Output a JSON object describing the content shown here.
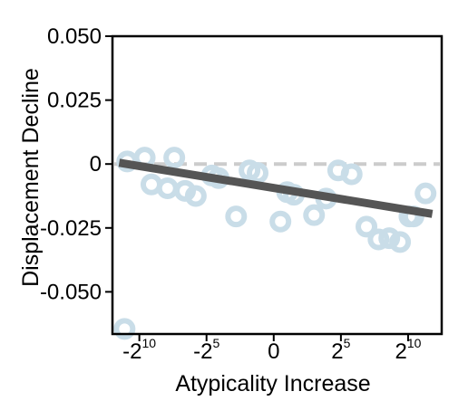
{
  "chart_data": {
    "type": "scatter",
    "xlabel": "Atypicality Increase",
    "ylabel": "Displacement Decline",
    "xlim": [
      -12,
      12.5
    ],
    "ylim": [
      -0.0665,
      0.05
    ],
    "yticks": [
      {
        "value": 0.05,
        "label": "0.050"
      },
      {
        "value": 0.025,
        "label": "0.025"
      },
      {
        "value": 0,
        "label": "0"
      },
      {
        "value": -0.025,
        "label": "-0.025"
      },
      {
        "value": -0.05,
        "label": "-0.050"
      }
    ],
    "xticks": [
      {
        "value": -10,
        "base": "-2",
        "exp": "10"
      },
      {
        "value": -5,
        "base": "-2",
        "exp": "5"
      },
      {
        "value": 0,
        "base": "0",
        "exp": ""
      },
      {
        "value": 5,
        "base": "2",
        "exp": "5"
      },
      {
        "value": 10,
        "base": "2",
        "exp": "10"
      }
    ],
    "reference_line": {
      "y": 0,
      "style": "dashed",
      "color": "#cccccc"
    },
    "points": [
      {
        "x": -10.9,
        "y": 0.001
      },
      {
        "x": -9.1,
        "y": -0.008
      },
      {
        "x": -7.9,
        "y": -0.0095
      },
      {
        "x": -9.6,
        "y": 0.0025
      },
      {
        "x": -7.4,
        "y": 0.0025
      },
      {
        "x": -6.6,
        "y": -0.0105
      },
      {
        "x": -5.8,
        "y": -0.0125
      },
      {
        "x": -4.6,
        "y": -0.0045
      },
      {
        "x": -4.1,
        "y": -0.0055
      },
      {
        "x": -2.8,
        "y": -0.0205
      },
      {
        "x": -1.8,
        "y": -0.0025
      },
      {
        "x": -1.2,
        "y": -0.0035
      },
      {
        "x": 0.5,
        "y": -0.0225
      },
      {
        "x": 1.0,
        "y": -0.011
      },
      {
        "x": 1.5,
        "y": -0.012
      },
      {
        "x": 3.0,
        "y": -0.02
      },
      {
        "x": 3.9,
        "y": -0.0135
      },
      {
        "x": 4.8,
        "y": -0.0025
      },
      {
        "x": 5.8,
        "y": -0.004
      },
      {
        "x": 6.9,
        "y": -0.0245
      },
      {
        "x": 7.8,
        "y": -0.0295
      },
      {
        "x": 8.6,
        "y": -0.029
      },
      {
        "x": 9.4,
        "y": -0.0305
      },
      {
        "x": 10.1,
        "y": -0.0205
      },
      {
        "x": 10.4,
        "y": -0.0205
      },
      {
        "x": 11.3,
        "y": -0.0115
      },
      {
        "x": -11.1,
        "y": -0.0645
      }
    ],
    "fit_line": {
      "x": [
        -11.5,
        11.8
      ],
      "y": [
        0.0005,
        -0.0195
      ]
    },
    "colors": {
      "points": "#c9dde8",
      "fit_line": "#555555",
      "reference_line": "#cccccc",
      "axes": "#000000"
    },
    "grid": false,
    "legend": "none"
  }
}
